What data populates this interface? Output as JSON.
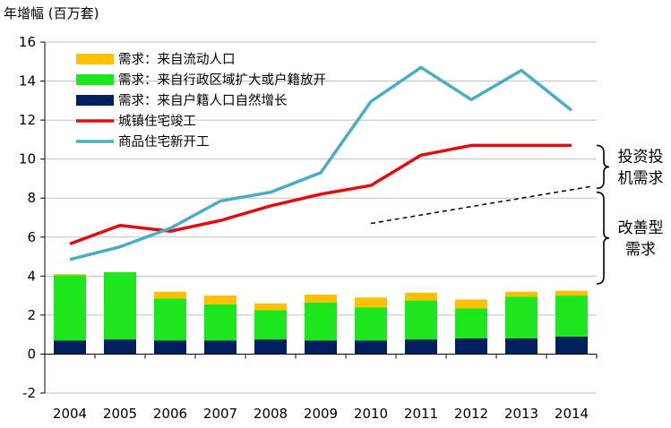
{
  "chart_data": {
    "type": "bar",
    "unit_label": "年增幅 (百万套)",
    "categories": [
      "2004",
      "2005",
      "2006",
      "2007",
      "2008",
      "2009",
      "2010",
      "2011",
      "2012",
      "2013",
      "2014"
    ],
    "ylim": [
      -2,
      16
    ],
    "yticks": [
      -2,
      0,
      2,
      4,
      6,
      8,
      10,
      12,
      14,
      16
    ],
    "grid": true,
    "legend_position": "top-left",
    "stacked_series": [
      {
        "name": "需求：来自户籍人口自然增长",
        "color": "#001f5f",
        "values": [
          0.7,
          0.75,
          0.7,
          0.7,
          0.75,
          0.7,
          0.7,
          0.75,
          0.8,
          0.8,
          0.9
        ]
      },
      {
        "name": "需求：来自行政区域扩大或户籍放开",
        "color": "#1ee61e",
        "values": [
          3.35,
          3.45,
          2.15,
          1.85,
          1.5,
          1.95,
          1.7,
          2.0,
          1.55,
          2.15,
          2.1
        ]
      },
      {
        "name": "需求：来自流动人口",
        "color": "#ffc000",
        "values": [
          0.05,
          0.0,
          0.35,
          0.45,
          0.35,
          0.4,
          0.5,
          0.4,
          0.45,
          0.25,
          0.25
        ]
      }
    ],
    "line_series": [
      {
        "name": "城镇住宅竣工",
        "color": "#e30b0b",
        "values": [
          5.65,
          6.6,
          6.3,
          6.85,
          7.6,
          8.2,
          8.65,
          10.2,
          10.7,
          10.7,
          10.7
        ]
      },
      {
        "name": "商品住宅新开工",
        "color": "#4bacc6",
        "values": [
          4.85,
          5.5,
          6.45,
          7.85,
          8.3,
          9.3,
          12.95,
          14.7,
          13.05,
          14.55,
          12.5
        ]
      }
    ],
    "trend_line": {
      "style": "dashed",
      "color": "#000000",
      "from": [
        2010,
        6.7
      ],
      "to": [
        2014.4,
        8.6
      ]
    },
    "legend_order": [
      "需求：来自流动人口",
      "需求：来自行政区域扩大或户籍放开",
      "需求：来自户籍人口自然增长",
      "城镇住宅竣工",
      "商品住宅新开工"
    ],
    "annotations": [
      {
        "lines": [
          "投资投",
          "机需求"
        ],
        "range": [
          8.5,
          10.7
        ]
      },
      {
        "lines": [
          "改善型",
          "需求"
        ],
        "range": [
          3.6,
          8.3
        ]
      }
    ]
  }
}
